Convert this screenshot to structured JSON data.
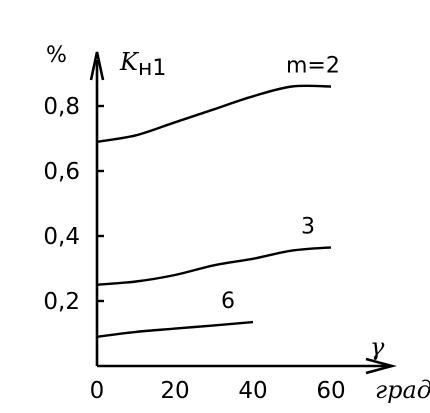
{
  "chart_data": {
    "type": "line",
    "ylabel": "%",
    "ylabel_symbol": "K",
    "ylabel_subscript": "н1",
    "xlabel": "γ",
    "xunit": "град",
    "xlim": [
      0,
      70
    ],
    "ylim": [
      0,
      0.95
    ],
    "x_ticks": [
      {
        "value": 0,
        "label": "0"
      },
      {
        "value": 20,
        "label": "20"
      },
      {
        "value": 40,
        "label": "40"
      },
      {
        "value": 60,
        "label": "60"
      }
    ],
    "y_ticks": [
      {
        "value": 0.2,
        "label": "0,2"
      },
      {
        "value": 0.4,
        "label": "0,4"
      },
      {
        "value": 0.6,
        "label": "0,6"
      },
      {
        "value": 0.8,
        "label": "0,8"
      }
    ],
    "series": [
      {
        "name": "m=2",
        "x": [
          0,
          10,
          20,
          30,
          40,
          50,
          60
        ],
        "y": [
          0.69,
          0.71,
          0.75,
          0.79,
          0.83,
          0.86,
          0.86
        ]
      },
      {
        "name": "3",
        "x": [
          0,
          10,
          20,
          30,
          40,
          50,
          60
        ],
        "y": [
          0.25,
          0.26,
          0.28,
          0.31,
          0.33,
          0.355,
          0.365
        ]
      },
      {
        "name": "6",
        "x": [
          0,
          10,
          20,
          30,
          40
        ],
        "y": [
          0.09,
          0.105,
          0.115,
          0.125,
          0.135
        ]
      }
    ],
    "grid": false,
    "legend": "none"
  }
}
